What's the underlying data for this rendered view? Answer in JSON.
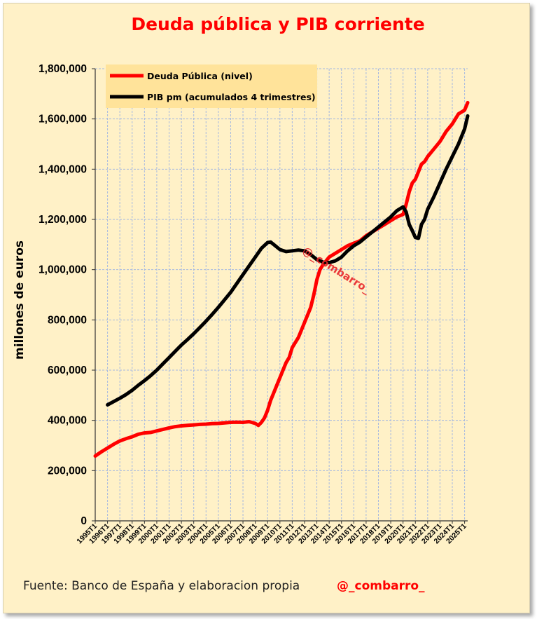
{
  "chart_data": {
    "type": "line",
    "title": "Deuda pública y PIB corriente",
    "ylabel": "millones de euros",
    "xlabel": "",
    "ylim": [
      0,
      1800000
    ],
    "yticks": [
      0,
      200000,
      400000,
      600000,
      800000,
      1000000,
      1200000,
      1400000,
      1600000,
      1800000
    ],
    "ytick_labels": [
      "0",
      "200,000",
      "400,000",
      "600,000",
      "800,000",
      "1,000,000",
      "1,200,000",
      "1,400,000",
      "1,600,000",
      "1,800,000"
    ],
    "x_start": "1995T1",
    "x_tick_labels": [
      "1995T1",
      "1996T1",
      "1997T1",
      "1998T1",
      "1999T1",
      "2000T1",
      "2001T1",
      "2002T1",
      "2003T1",
      "2004T1",
      "2005T1",
      "2006T1",
      "2007T1",
      "2008T1",
      "2009T1",
      "2010T1",
      "2011T1",
      "2012T1",
      "2013T1",
      "2014T1",
      "2015T1",
      "2016T1",
      "2017T1",
      "2018T1",
      "2019T1",
      "2020T1",
      "2021T1",
      "2022T1",
      "2023T1",
      "2024T1",
      "2025T1"
    ],
    "grid": true,
    "legend_position": "top-left",
    "series": [
      {
        "name": "Deuda Pública (nivel)",
        "color": "#ff0000",
        "points": [
          [
            "1995T1",
            258000
          ],
          [
            "1995T3",
            275000
          ],
          [
            "1996T1",
            290000
          ],
          [
            "1996T3",
            305000
          ],
          [
            "1997T1",
            318000
          ],
          [
            "1997T3",
            327000
          ],
          [
            "1998T1",
            335000
          ],
          [
            "1998T3",
            345000
          ],
          [
            "1999T1",
            350000
          ],
          [
            "1999T3",
            352000
          ],
          [
            "2000T1",
            358000
          ],
          [
            "2000T3",
            364000
          ],
          [
            "2001T1",
            370000
          ],
          [
            "2001T3",
            375000
          ],
          [
            "2002T1",
            378000
          ],
          [
            "2002T3",
            380000
          ],
          [
            "2003T1",
            382000
          ],
          [
            "2003T3",
            384000
          ],
          [
            "2004T1",
            385000
          ],
          [
            "2004T3",
            387000
          ],
          [
            "2005T1",
            388000
          ],
          [
            "2005T3",
            390000
          ],
          [
            "2006T1",
            392000
          ],
          [
            "2006T3",
            393000
          ],
          [
            "2007T1",
            392000
          ],
          [
            "2007T3",
            395000
          ],
          [
            "2008T1",
            388000
          ],
          [
            "2008T2",
            380000
          ],
          [
            "2008T3",
            392000
          ],
          [
            "2008T4",
            410000
          ],
          [
            "2009T1",
            440000
          ],
          [
            "2009T2",
            480000
          ],
          [
            "2009T3",
            510000
          ],
          [
            "2009T4",
            540000
          ],
          [
            "2010T1",
            570000
          ],
          [
            "2010T2",
            600000
          ],
          [
            "2010T3",
            630000
          ],
          [
            "2010T4",
            650000
          ],
          [
            "2011T1",
            690000
          ],
          [
            "2011T2",
            710000
          ],
          [
            "2011T3",
            730000
          ],
          [
            "2011T4",
            760000
          ],
          [
            "2012T1",
            790000
          ],
          [
            "2012T2",
            820000
          ],
          [
            "2012T3",
            850000
          ],
          [
            "2012T4",
            900000
          ],
          [
            "2013T1",
            960000
          ],
          [
            "2013T2",
            1000000
          ],
          [
            "2013T3",
            1020000
          ],
          [
            "2013T4",
            1035000
          ],
          [
            "2014T1",
            1050000
          ],
          [
            "2014T3",
            1065000
          ],
          [
            "2015T1",
            1080000
          ],
          [
            "2015T3",
            1095000
          ],
          [
            "2016T1",
            1105000
          ],
          [
            "2016T3",
            1115000
          ],
          [
            "2017T1",
            1135000
          ],
          [
            "2017T3",
            1150000
          ],
          [
            "2018T1",
            1165000
          ],
          [
            "2018T3",
            1180000
          ],
          [
            "2019T1",
            1195000
          ],
          [
            "2019T3",
            1210000
          ],
          [
            "2020T1",
            1220000
          ],
          [
            "2020T2",
            1260000
          ],
          [
            "2020T3",
            1310000
          ],
          [
            "2020T4",
            1345000
          ],
          [
            "2021T1",
            1360000
          ],
          [
            "2021T2",
            1390000
          ],
          [
            "2021T3",
            1420000
          ],
          [
            "2021T4",
            1430000
          ],
          [
            "2022T1",
            1450000
          ],
          [
            "2022T3",
            1480000
          ],
          [
            "2023T1",
            1510000
          ],
          [
            "2023T3",
            1550000
          ],
          [
            "2024T1",
            1580000
          ],
          [
            "2024T3",
            1620000
          ],
          [
            "2025T1",
            1635000
          ],
          [
            "2025T2",
            1665000
          ]
        ]
      },
      {
        "name": "PIB pm (acumulados 4 trimestres)",
        "color": "#000000",
        "points": [
          [
            "1996T1",
            462000
          ],
          [
            "1996T3",
            475000
          ],
          [
            "1997T1",
            488000
          ],
          [
            "1997T3",
            503000
          ],
          [
            "1998T1",
            520000
          ],
          [
            "1998T3",
            540000
          ],
          [
            "1999T1",
            558000
          ],
          [
            "1999T3",
            578000
          ],
          [
            "2000T1",
            600000
          ],
          [
            "2000T3",
            625000
          ],
          [
            "2001T1",
            650000
          ],
          [
            "2001T3",
            675000
          ],
          [
            "2002T1",
            700000
          ],
          [
            "2002T3",
            722000
          ],
          [
            "2003T1",
            745000
          ],
          [
            "2003T3",
            770000
          ],
          [
            "2004T1",
            795000
          ],
          [
            "2004T3",
            822000
          ],
          [
            "2005T1",
            850000
          ],
          [
            "2005T3",
            880000
          ],
          [
            "2006T1",
            910000
          ],
          [
            "2006T3",
            945000
          ],
          [
            "2007T1",
            980000
          ],
          [
            "2007T3",
            1015000
          ],
          [
            "2008T1",
            1050000
          ],
          [
            "2008T3",
            1085000
          ],
          [
            "2009T1",
            1108000
          ],
          [
            "2009T2",
            1110000
          ],
          [
            "2009T3",
            1100000
          ],
          [
            "2010T1",
            1080000
          ],
          [
            "2010T3",
            1072000
          ],
          [
            "2011T1",
            1075000
          ],
          [
            "2011T3",
            1078000
          ],
          [
            "2012T1",
            1075000
          ],
          [
            "2012T3",
            1060000
          ],
          [
            "2013T1",
            1040000
          ],
          [
            "2013T3",
            1030000
          ],
          [
            "2014T1",
            1028000
          ],
          [
            "2014T3",
            1035000
          ],
          [
            "2015T1",
            1050000
          ],
          [
            "2015T3",
            1075000
          ],
          [
            "2016T1",
            1095000
          ],
          [
            "2016T3",
            1110000
          ],
          [
            "2017T1",
            1130000
          ],
          [
            "2017T3",
            1150000
          ],
          [
            "2018T1",
            1170000
          ],
          [
            "2018T3",
            1190000
          ],
          [
            "2019T1",
            1210000
          ],
          [
            "2019T3",
            1235000
          ],
          [
            "2020T1",
            1250000
          ],
          [
            "2020T2",
            1230000
          ],
          [
            "2020T3",
            1180000
          ],
          [
            "2020T4",
            1155000
          ],
          [
            "2021T1",
            1128000
          ],
          [
            "2021T2",
            1125000
          ],
          [
            "2021T3",
            1180000
          ],
          [
            "2021T4",
            1200000
          ],
          [
            "2022T1",
            1240000
          ],
          [
            "2022T3",
            1290000
          ],
          [
            "2023T1",
            1345000
          ],
          [
            "2023T3",
            1400000
          ],
          [
            "2024T1",
            1450000
          ],
          [
            "2024T3",
            1500000
          ],
          [
            "2025T1",
            1560000
          ],
          [
            "2025T2",
            1612000
          ]
        ]
      }
    ],
    "annotations": [
      "@_combarro_"
    ]
  },
  "footer": {
    "source": "Fuente: Banco de España y elaboracion propia",
    "handle": "@_combarro_"
  }
}
